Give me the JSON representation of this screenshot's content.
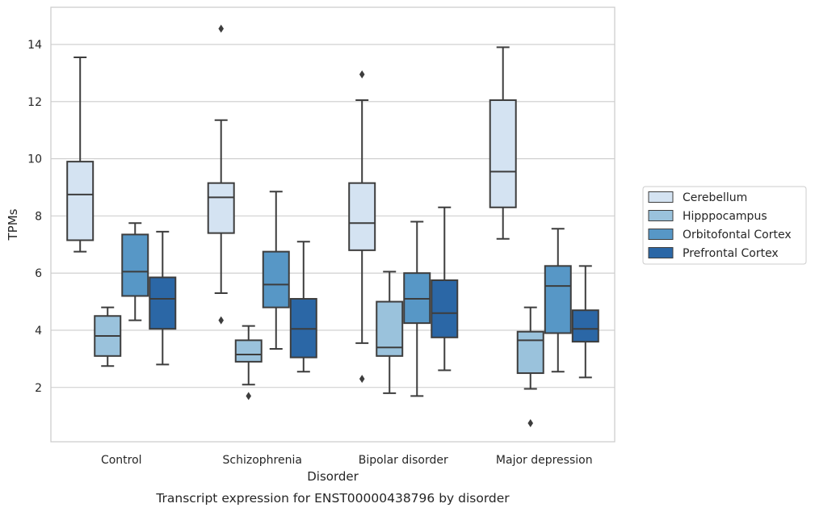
{
  "chart_data": {
    "type": "box",
    "title": "",
    "caption": "Transcript expression for ENST00000438796 by disorder",
    "xlabel": "Disorder",
    "ylabel": "TPMs",
    "ylim": [
      0.1,
      15.3
    ],
    "yticks": [
      "2",
      "4",
      "6",
      "8",
      "10",
      "12",
      "14"
    ],
    "grid": "horizontal",
    "legend_position": "right",
    "categories": [
      "Control",
      "Schizophrenia",
      "Bipolar disorder",
      "Major depression"
    ],
    "series": [
      {
        "name": "Cerebellum",
        "color": "#d4e3f2",
        "boxes": [
          {
            "whislo": 6.75,
            "q1": 7.15,
            "med": 8.75,
            "q3": 9.9,
            "whishi": 13.55,
            "fliers": []
          },
          {
            "whislo": 5.3,
            "q1": 7.4,
            "med": 8.65,
            "q3": 9.15,
            "whishi": 11.35,
            "fliers": [
              4.35,
              14.55
            ]
          },
          {
            "whislo": 3.55,
            "q1": 6.8,
            "med": 7.75,
            "q3": 9.15,
            "whishi": 12.05,
            "fliers": [
              2.3,
              12.95
            ]
          },
          {
            "whislo": 7.2,
            "q1": 8.3,
            "med": 9.55,
            "q3": 12.05,
            "whishi": 13.9,
            "fliers": []
          }
        ]
      },
      {
        "name": "Hipppocampus",
        "color": "#9ac2dc",
        "boxes": [
          {
            "whislo": 2.75,
            "q1": 3.1,
            "med": 3.8,
            "q3": 4.5,
            "whishi": 4.8,
            "fliers": []
          },
          {
            "whislo": 2.1,
            "q1": 2.9,
            "med": 3.15,
            "q3": 3.65,
            "whishi": 4.15,
            "fliers": [
              1.7
            ]
          },
          {
            "whislo": 1.8,
            "q1": 3.1,
            "med": 3.4,
            "q3": 5.0,
            "whishi": 6.05,
            "fliers": []
          },
          {
            "whislo": 1.95,
            "q1": 2.5,
            "med": 3.65,
            "q3": 3.95,
            "whishi": 4.8,
            "fliers": [
              0.75
            ]
          }
        ]
      },
      {
        "name": "Orbitofontal Cortex",
        "color": "#5797c6",
        "boxes": [
          {
            "whislo": 4.35,
            "q1": 5.2,
            "med": 6.05,
            "q3": 7.35,
            "whishi": 7.75,
            "fliers": []
          },
          {
            "whislo": 3.35,
            "q1": 4.8,
            "med": 5.6,
            "q3": 6.75,
            "whishi": 8.85,
            "fliers": []
          },
          {
            "whislo": 1.7,
            "q1": 4.25,
            "med": 5.1,
            "q3": 6.0,
            "whishi": 7.8,
            "fliers": []
          },
          {
            "whislo": 2.55,
            "q1": 3.9,
            "med": 5.55,
            "q3": 6.25,
            "whishi": 7.55,
            "fliers": []
          }
        ]
      },
      {
        "name": "Prefrontal Cortex",
        "color": "#2b67a6",
        "boxes": [
          {
            "whislo": 2.8,
            "q1": 4.05,
            "med": 5.1,
            "q3": 5.85,
            "whishi": 7.45,
            "fliers": []
          },
          {
            "whislo": 2.55,
            "q1": 3.05,
            "med": 4.05,
            "q3": 5.1,
            "whishi": 7.1,
            "fliers": []
          },
          {
            "whislo": 2.6,
            "q1": 3.75,
            "med": 4.6,
            "q3": 5.75,
            "whishi": 8.3,
            "fliers": []
          },
          {
            "whislo": 2.35,
            "q1": 3.6,
            "med": 4.05,
            "q3": 4.7,
            "whishi": 6.25,
            "fliers": []
          }
        ]
      }
    ]
  }
}
